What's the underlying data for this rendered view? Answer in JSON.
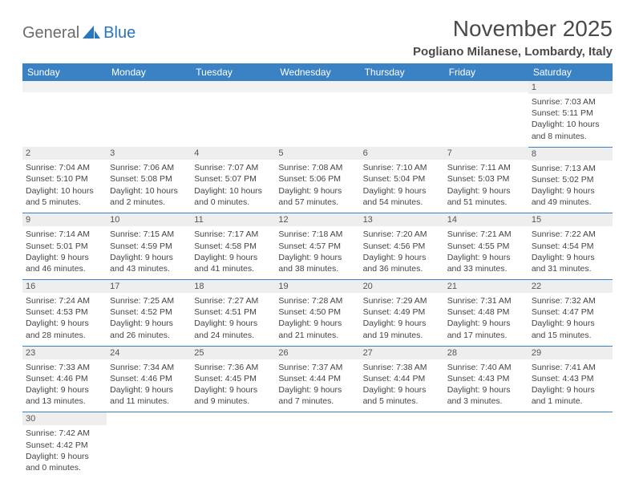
{
  "logo": {
    "part1": "General",
    "part2": "Blue"
  },
  "title": "November 2025",
  "location": "Pogliano Milanese, Lombardy, Italy",
  "colors": {
    "header_bg": "#3b82c4",
    "header_text": "#ffffff",
    "daynum_bg": "#eeeeee",
    "row_divider": "#3b82c4",
    "blank_bg": "#f2f2f2",
    "logo_gray": "#6b6b6b",
    "logo_blue": "#2a75bb"
  },
  "day_headers": [
    "Sunday",
    "Monday",
    "Tuesday",
    "Wednesday",
    "Thursday",
    "Friday",
    "Saturday"
  ],
  "weeks": [
    [
      null,
      null,
      null,
      null,
      null,
      null,
      {
        "n": "1",
        "sr": "7:03 AM",
        "ss": "5:11 PM",
        "dl": "10 hours and 8 minutes."
      }
    ],
    [
      {
        "n": "2",
        "sr": "7:04 AM",
        "ss": "5:10 PM",
        "dl": "10 hours and 5 minutes."
      },
      {
        "n": "3",
        "sr": "7:06 AM",
        "ss": "5:08 PM",
        "dl": "10 hours and 2 minutes."
      },
      {
        "n": "4",
        "sr": "7:07 AM",
        "ss": "5:07 PM",
        "dl": "10 hours and 0 minutes."
      },
      {
        "n": "5",
        "sr": "7:08 AM",
        "ss": "5:06 PM",
        "dl": "9 hours and 57 minutes."
      },
      {
        "n": "6",
        "sr": "7:10 AM",
        "ss": "5:04 PM",
        "dl": "9 hours and 54 minutes."
      },
      {
        "n": "7",
        "sr": "7:11 AM",
        "ss": "5:03 PM",
        "dl": "9 hours and 51 minutes."
      },
      {
        "n": "8",
        "sr": "7:13 AM",
        "ss": "5:02 PM",
        "dl": "9 hours and 49 minutes."
      }
    ],
    [
      {
        "n": "9",
        "sr": "7:14 AM",
        "ss": "5:01 PM",
        "dl": "9 hours and 46 minutes."
      },
      {
        "n": "10",
        "sr": "7:15 AM",
        "ss": "4:59 PM",
        "dl": "9 hours and 43 minutes."
      },
      {
        "n": "11",
        "sr": "7:17 AM",
        "ss": "4:58 PM",
        "dl": "9 hours and 41 minutes."
      },
      {
        "n": "12",
        "sr": "7:18 AM",
        "ss": "4:57 PM",
        "dl": "9 hours and 38 minutes."
      },
      {
        "n": "13",
        "sr": "7:20 AM",
        "ss": "4:56 PM",
        "dl": "9 hours and 36 minutes."
      },
      {
        "n": "14",
        "sr": "7:21 AM",
        "ss": "4:55 PM",
        "dl": "9 hours and 33 minutes."
      },
      {
        "n": "15",
        "sr": "7:22 AM",
        "ss": "4:54 PM",
        "dl": "9 hours and 31 minutes."
      }
    ],
    [
      {
        "n": "16",
        "sr": "7:24 AM",
        "ss": "4:53 PM",
        "dl": "9 hours and 28 minutes."
      },
      {
        "n": "17",
        "sr": "7:25 AM",
        "ss": "4:52 PM",
        "dl": "9 hours and 26 minutes."
      },
      {
        "n": "18",
        "sr": "7:27 AM",
        "ss": "4:51 PM",
        "dl": "9 hours and 24 minutes."
      },
      {
        "n": "19",
        "sr": "7:28 AM",
        "ss": "4:50 PM",
        "dl": "9 hours and 21 minutes."
      },
      {
        "n": "20",
        "sr": "7:29 AM",
        "ss": "4:49 PM",
        "dl": "9 hours and 19 minutes."
      },
      {
        "n": "21",
        "sr": "7:31 AM",
        "ss": "4:48 PM",
        "dl": "9 hours and 17 minutes."
      },
      {
        "n": "22",
        "sr": "7:32 AM",
        "ss": "4:47 PM",
        "dl": "9 hours and 15 minutes."
      }
    ],
    [
      {
        "n": "23",
        "sr": "7:33 AM",
        "ss": "4:46 PM",
        "dl": "9 hours and 13 minutes."
      },
      {
        "n": "24",
        "sr": "7:34 AM",
        "ss": "4:46 PM",
        "dl": "9 hours and 11 minutes."
      },
      {
        "n": "25",
        "sr": "7:36 AM",
        "ss": "4:45 PM",
        "dl": "9 hours and 9 minutes."
      },
      {
        "n": "26",
        "sr": "7:37 AM",
        "ss": "4:44 PM",
        "dl": "9 hours and 7 minutes."
      },
      {
        "n": "27",
        "sr": "7:38 AM",
        "ss": "4:44 PM",
        "dl": "9 hours and 5 minutes."
      },
      {
        "n": "28",
        "sr": "7:40 AM",
        "ss": "4:43 PM",
        "dl": "9 hours and 3 minutes."
      },
      {
        "n": "29",
        "sr": "7:41 AM",
        "ss": "4:43 PM",
        "dl": "9 hours and 1 minute."
      }
    ],
    [
      {
        "n": "30",
        "sr": "7:42 AM",
        "ss": "4:42 PM",
        "dl": "9 hours and 0 minutes."
      },
      null,
      null,
      null,
      null,
      null,
      null
    ]
  ],
  "labels": {
    "sunrise": "Sunrise:",
    "sunset": "Sunset:",
    "daylight": "Daylight:"
  }
}
